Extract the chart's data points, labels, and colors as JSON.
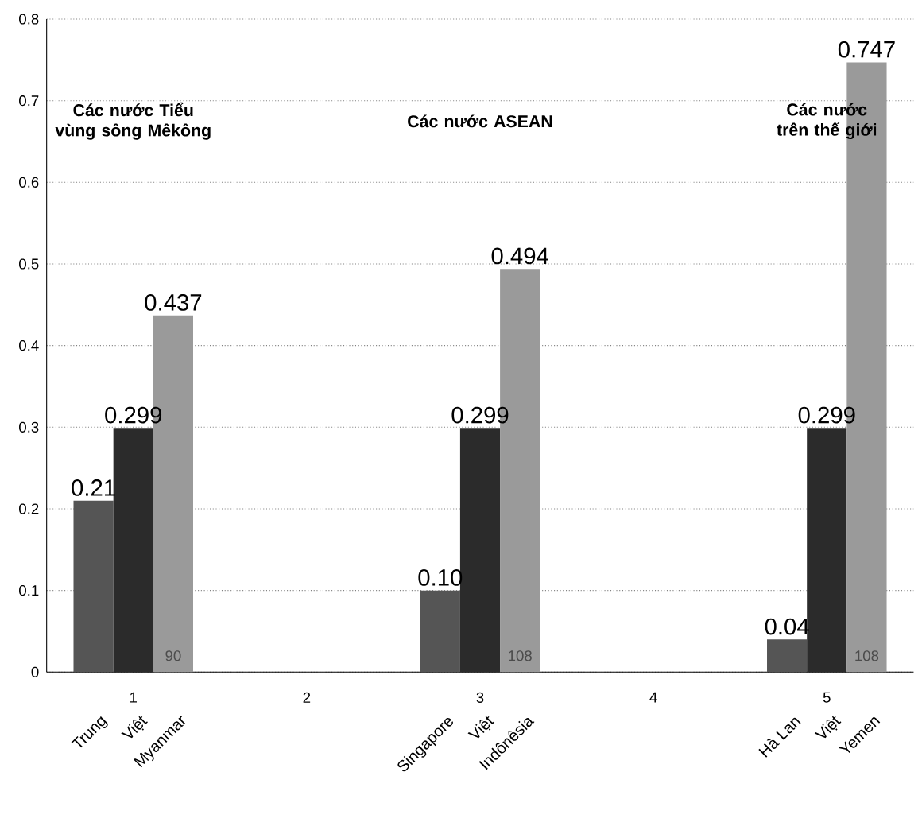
{
  "chart_data": {
    "type": "bar",
    "series": [
      {
        "color": "#555555",
        "x": [
          0.77,
          2.77,
          4.77
        ],
        "values": [
          0.21,
          0.1,
          0.04
        ],
        "value_labels": [
          "0.21",
          "0.10",
          "0.04"
        ]
      },
      {
        "color": "#2b2b2b",
        "x": [
          1,
          3,
          5
        ],
        "values": [
          0.299,
          0.299,
          0.299
        ],
        "value_labels": [
          "0.299",
          "0.299",
          "0.299"
        ]
      },
      {
        "color": "#9a9a9a",
        "x": [
          1.23,
          3.23,
          5.23
        ],
        "values": [
          0.437,
          0.494,
          0.747
        ],
        "value_labels": [
          "0.437",
          "0.494",
          "0.747"
        ]
      }
    ],
    "xlim": [
      0.5,
      5.5
    ],
    "xticks": [
      1,
      2,
      3,
      4,
      5
    ],
    "ylim": [
      0,
      0.8
    ],
    "yticks": [
      0,
      0.1,
      0.2,
      0.3,
      0.4,
      0.5,
      0.6,
      0.7,
      0.8
    ],
    "grid": "y",
    "annotations": [
      "Các nước Tiểu vùng sông Mêkông",
      "Các nước ASEAN",
      "Các nước trên thế giới",
      {
        "text": "Trung",
        "x": 0.77,
        "y": 0
      },
      {
        "text": "Việt",
        "x": 1,
        "y": 0
      },
      {
        "text": "Myanmar",
        "x": 1.23,
        "y": 0
      },
      {
        "text": "Singapore",
        "x": 2.77,
        "y": 0
      },
      {
        "text": "Việt",
        "x": 3,
        "y": 0
      },
      {
        "text": "Indônêsia",
        "x": 3.23,
        "y": 0
      },
      {
        "text": "Hà Lan",
        "x": 4.77,
        "y": 0
      },
      {
        "text": "Việt",
        "x": 5,
        "y": 0
      },
      {
        "text": "Yemen",
        "x": 5.23,
        "y": 0
      },
      "90",
      "108",
      "108"
    ]
  }
}
